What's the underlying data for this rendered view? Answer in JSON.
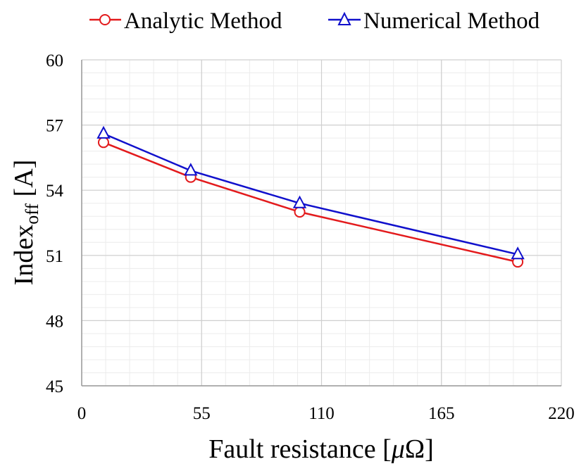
{
  "chart_data": {
    "type": "line",
    "title": "",
    "xlabel": "Fault resistance [μΩ]",
    "xlabel_parts": {
      "main": "Fault resistance [",
      "symbol": "μ",
      "rest": "Ω]"
    },
    "ylabel": "Index_off [A]",
    "ylabel_parts": {
      "main": "Index",
      "sub": "off",
      "unit": " [A]"
    },
    "xlim": [
      0,
      220
    ],
    "ylim": [
      45,
      60
    ],
    "xticks": [
      0,
      55,
      110,
      165,
      220
    ],
    "yticks": [
      45,
      48,
      51,
      54,
      57,
      60
    ],
    "grid": true,
    "legend": "top",
    "series": [
      {
        "name": "Analytic Method",
        "color": "#e31a1c",
        "marker": "circle",
        "x": [
          10,
          50,
          100,
          200
        ],
        "y": [
          56.2,
          54.6,
          53.0,
          50.7
        ]
      },
      {
        "name": "Numerical Method",
        "color": "#1010cc",
        "marker": "triangle",
        "x": [
          10,
          50,
          100,
          200
        ],
        "y": [
          56.6,
          54.9,
          53.4,
          51.05
        ]
      }
    ]
  }
}
